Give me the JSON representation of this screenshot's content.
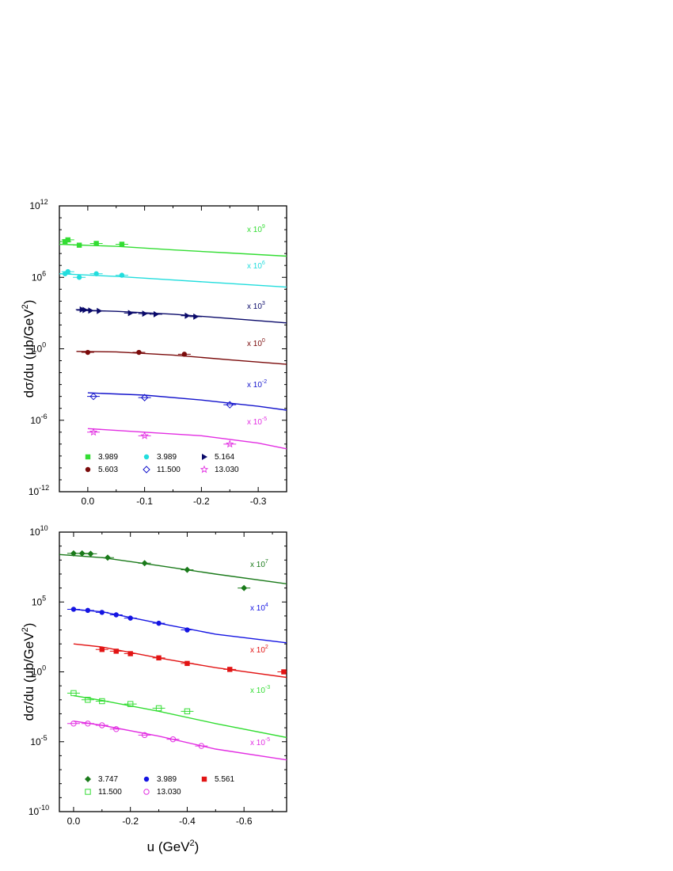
{
  "chart_data": [
    {
      "type": "scatter",
      "xlabel": "",
      "ylabel": "dσ/du (μb/GeV2)",
      "ylabel_parts": {
        "main": "dσ/du (μb/GeV",
        "sup": "2",
        "tail": ")"
      },
      "x_reversed": true,
      "xlim": [
        0.05,
        -0.35
      ],
      "ylim_exponent": [
        -12,
        12
      ],
      "y_scale": "log",
      "xticks": [
        0.0,
        -0.1,
        -0.2,
        -0.3
      ],
      "xtick_labels": [
        "0.0",
        "-0.1",
        "-0.2",
        "-0.3"
      ],
      "yticks_exp": [
        -12,
        -6,
        0,
        6,
        12
      ],
      "ytick_labels": [
        "10-12",
        "10-6",
        "100",
        "106",
        "1012"
      ],
      "legend_position": "bottom-left",
      "series": [
        {
          "name": "3.989",
          "color": "#33dd33",
          "marker": "square-filled",
          "scale": "x 109",
          "points": [
            [
              0.04,
              1000000000.0
            ],
            [
              0.035,
              1400000000.0
            ],
            [
              0.015,
              500000000.0
            ],
            [
              -0.015,
              700000000.0
            ],
            [
              -0.06,
              600000000.0
            ]
          ],
          "curve": [
            [
              0.05,
              600000000.0
            ],
            [
              -0.05,
              400000000.0
            ],
            [
              -0.15,
              200000000.0
            ],
            [
              -0.25,
              110000000.0
            ],
            [
              -0.35,
              60000000.0
            ]
          ]
        },
        {
          "name": "3.989",
          "color": "#22dddd",
          "marker": "circle-filled",
          "scale": "x 106",
          "points": [
            [
              0.04,
              2000000.0
            ],
            [
              0.035,
              3000000.0
            ],
            [
              0.015,
              1000000.0
            ],
            [
              -0.015,
              2000000.0
            ],
            [
              -0.06,
              1500000.0
            ]
          ],
          "curve": [
            [
              0.05,
              2000000.0
            ],
            [
              -0.05,
              1200000.0
            ],
            [
              -0.15,
              600000.0
            ],
            [
              -0.25,
              300000.0
            ],
            [
              -0.35,
              150000.0
            ]
          ]
        },
        {
          "name": "5.164",
          "color": "#0a0a6a",
          "marker": "triangle-right",
          "scale": "x 103",
          "points": [
            [
              0.01,
              2000.0
            ],
            [
              0.005,
              1800.0
            ],
            [
              -0.005,
              1600.0
            ],
            [
              -0.02,
              1500.0
            ],
            [
              -0.075,
              1000.0
            ],
            [
              -0.1,
              900.0
            ],
            [
              -0.12,
              800.0
            ],
            [
              -0.175,
              600.0
            ],
            [
              -0.19,
              500.0
            ]
          ],
          "curve": [
            [
              0.02,
              1800.0
            ],
            [
              -0.05,
              1400.0
            ],
            [
              -0.15,
              800.0
            ],
            [
              -0.25,
              350.0
            ],
            [
              -0.35,
              150.0
            ]
          ]
        },
        {
          "name": "5.603",
          "color": "#7a0a0a",
          "marker": "circle-filled",
          "scale": "x 100",
          "points": [
            [
              0.0,
              0.5
            ],
            [
              -0.09,
              0.5
            ],
            [
              -0.17,
              0.35
            ]
          ],
          "curve": [
            [
              0.02,
              0.6
            ],
            [
              -0.05,
              0.55
            ],
            [
              -0.15,
              0.3
            ],
            [
              -0.25,
              0.12
            ],
            [
              -0.35,
              0.05
            ]
          ]
        },
        {
          "name": "11.500",
          "color": "#1414cc",
          "marker": "diamond-open",
          "scale": "x 10-2",
          "points": [
            [
              -0.01,
              0.0001
            ],
            [
              -0.1,
              8e-05
            ],
            [
              -0.25,
              2e-05
            ]
          ],
          "curve": [
            [
              0.0,
              0.0002
            ],
            [
              -0.1,
              0.00013
            ],
            [
              -0.2,
              5e-05
            ],
            [
              -0.3,
              1.5e-05
            ],
            [
              -0.35,
              7e-06
            ]
          ]
        },
        {
          "name": "13.030",
          "color": "#e22ee2",
          "marker": "star-open",
          "scale": "x 10-5",
          "points": [
            [
              -0.01,
              1e-07
            ],
            [
              -0.1,
              5e-08
            ],
            [
              -0.25,
              1e-08
            ]
          ],
          "curve": [
            [
              0.0,
              2e-07
            ],
            [
              -0.1,
              1e-07
            ],
            [
              -0.2,
              5e-08
            ],
            [
              -0.3,
              1.2e-08
            ],
            [
              -0.35,
              4e-09
            ]
          ]
        }
      ]
    },
    {
      "type": "scatter",
      "xlabel": "u (GeV2)",
      "xlabel_parts": {
        "main": "u (GeV",
        "sup": "2",
        "tail": ")"
      },
      "ylabel": "dσ/du (μb/GeV2)",
      "ylabel_parts": {
        "main": "dσ/du (μb/GeV",
        "sup": "2",
        "tail": ")"
      },
      "x_reversed": true,
      "xlim": [
        0.05,
        -0.75
      ],
      "ylim_exponent": [
        -10,
        10
      ],
      "y_scale": "log",
      "xticks": [
        0.0,
        -0.2,
        -0.4,
        -0.6
      ],
      "xtick_labels": [
        "0.0",
        "-0.2",
        "-0.4",
        "-0.6"
      ],
      "yticks_exp": [
        -10,
        -5,
        0,
        5,
        10
      ],
      "ytick_labels": [
        "10-10",
        "10-5",
        "100",
        "105",
        "1010"
      ],
      "legend_position": "bottom-left",
      "series": [
        {
          "name": "3.747",
          "color": "#1a7a1a",
          "marker": "diamond-filled",
          "scale": "x 107",
          "points": [
            [
              0.0,
              300000000.0
            ],
            [
              -0.03,
              300000000.0
            ],
            [
              -0.06,
              280000000.0
            ],
            [
              -0.12,
              150000000.0
            ],
            [
              -0.25,
              60000000.0
            ],
            [
              -0.4,
              20000000.0
            ],
            [
              -0.6,
              1000000.0
            ]
          ],
          "curve": [
            [
              0.05,
              250000000.0
            ],
            [
              -0.1,
              150000000.0
            ],
            [
              -0.3,
              40000000.0
            ],
            [
              -0.5,
              10000000.0
            ],
            [
              -0.75,
              2000000.0
            ]
          ]
        },
        {
          "name": "3.989",
          "color": "#1414e2",
          "marker": "circle-filled",
          "scale": "x 104",
          "points": [
            [
              0.0,
              30000.0
            ],
            [
              -0.05,
              25000.0
            ],
            [
              -0.1,
              18000.0
            ],
            [
              -0.15,
              12000.0
            ],
            [
              -0.2,
              7000.0
            ],
            [
              -0.3,
              3000.0
            ],
            [
              -0.4,
              1000.0
            ]
          ],
          "curve": [
            [
              0.0,
              30000.0
            ],
            [
              -0.1,
              20000.0
            ],
            [
              -0.3,
              3000.0
            ],
            [
              -0.5,
              500.0
            ],
            [
              -0.75,
              120.0
            ]
          ]
        },
        {
          "name": "5.561",
          "color": "#e21414",
          "marker": "square-filled",
          "scale": "x 102",
          "points": [
            [
              -0.1,
              40.0
            ],
            [
              -0.15,
              30.0
            ],
            [
              -0.2,
              20.0
            ],
            [
              -0.3,
              10.0
            ],
            [
              -0.4,
              4.0
            ],
            [
              -0.55,
              1.5
            ],
            [
              -0.74,
              1.0
            ]
          ],
          "curve": [
            [
              0.0,
              100.0
            ],
            [
              -0.1,
              60.0
            ],
            [
              -0.3,
              10.0
            ],
            [
              -0.5,
              2.0
            ],
            [
              -0.75,
              0.4
            ]
          ]
        },
        {
          "name": "11.500",
          "color": "#33dd33",
          "marker": "square-open",
          "scale": "x 10-3",
          "points": [
            [
              0.0,
              0.03
            ],
            [
              -0.05,
              0.01
            ],
            [
              -0.1,
              0.008
            ],
            [
              -0.2,
              0.005
            ],
            [
              -0.3,
              0.0025
            ],
            [
              -0.4,
              0.0015
            ]
          ],
          "curve": [
            [
              0.0,
              0.02
            ],
            [
              -0.1,
              0.009
            ],
            [
              -0.3,
              0.0015
            ],
            [
              -0.5,
              0.0002
            ],
            [
              -0.75,
              2e-05
            ]
          ]
        },
        {
          "name": "13.030",
          "color": "#e22ee2",
          "marker": "circle-open",
          "scale": "x 10-5",
          "points": [
            [
              0.0,
              0.0002
            ],
            [
              -0.05,
              0.0002
            ],
            [
              -0.1,
              0.00015
            ],
            [
              -0.15,
              8e-05
            ],
            [
              -0.25,
              3e-05
            ],
            [
              -0.35,
              1.5e-05
            ],
            [
              -0.45,
              5e-06
            ]
          ],
          "curve": [
            [
              0.0,
              0.0003
            ],
            [
              -0.1,
              0.00015
            ],
            [
              -0.3,
              2.5e-05
            ],
            [
              -0.5,
              3e-06
            ],
            [
              -0.75,
              5e-07
            ]
          ]
        }
      ]
    }
  ]
}
